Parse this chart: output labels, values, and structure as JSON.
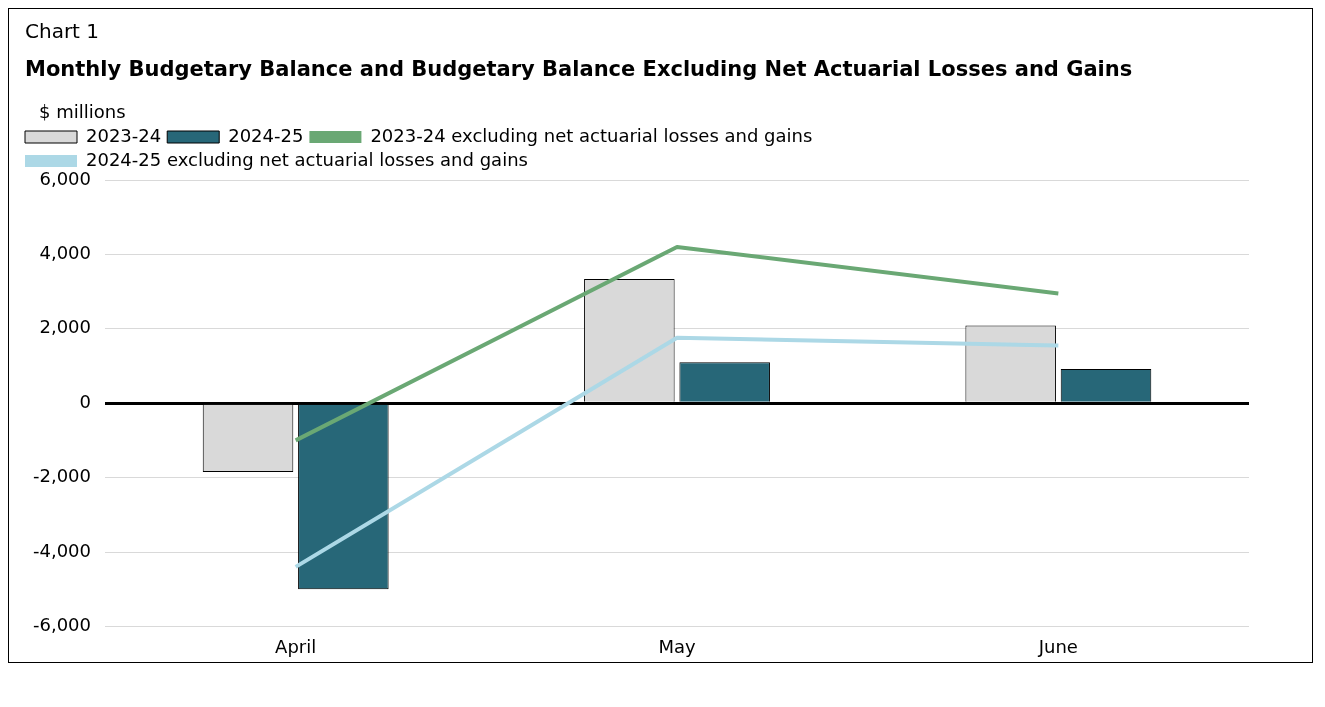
{
  "chart_data": {
    "type": "bar",
    "title": "Monthly Budgetary Balance and Budgetary Balance Excluding Net Actuarial Losses and Gains",
    "annotations": [
      "Chart 1"
    ],
    "ylabel": "$ millions",
    "categories": [
      "April",
      "May",
      "June"
    ],
    "series": [
      {
        "name": "2023-24",
        "color": "#d9d9d9",
        "values": [
          -1850,
          3340,
          2090
        ]
      },
      {
        "name": "2024-25",
        "color": "#276778",
        "values": [
          -5000,
          1100,
          920
        ]
      },
      {
        "name": "2023-24 excluding net actuarial losses and gains",
        "type": "line",
        "color": "#6aa874",
        "values": [
          -1000,
          4200,
          2950
        ]
      },
      {
        "name": "2024-25 excluding net actuarial losses and gains",
        "type": "line",
        "color": "#acd8e6",
        "values": [
          -4400,
          1760,
          1550
        ]
      }
    ],
    "ylim": [
      -6000,
      6000
    ],
    "yticks": [
      {
        "value": -6000,
        "label": "-6,000"
      },
      {
        "value": -4000,
        "label": "-4,000"
      },
      {
        "value": -2000,
        "label": "-2,000"
      },
      0,
      {
        "value": 2000,
        "label": "2,000"
      },
      {
        "value": 4000,
        "label": "4,000"
      },
      {
        "value": 6000,
        "label": "6,000"
      }
    ],
    "grid": "y",
    "legend": "top",
    "marker": "none"
  }
}
